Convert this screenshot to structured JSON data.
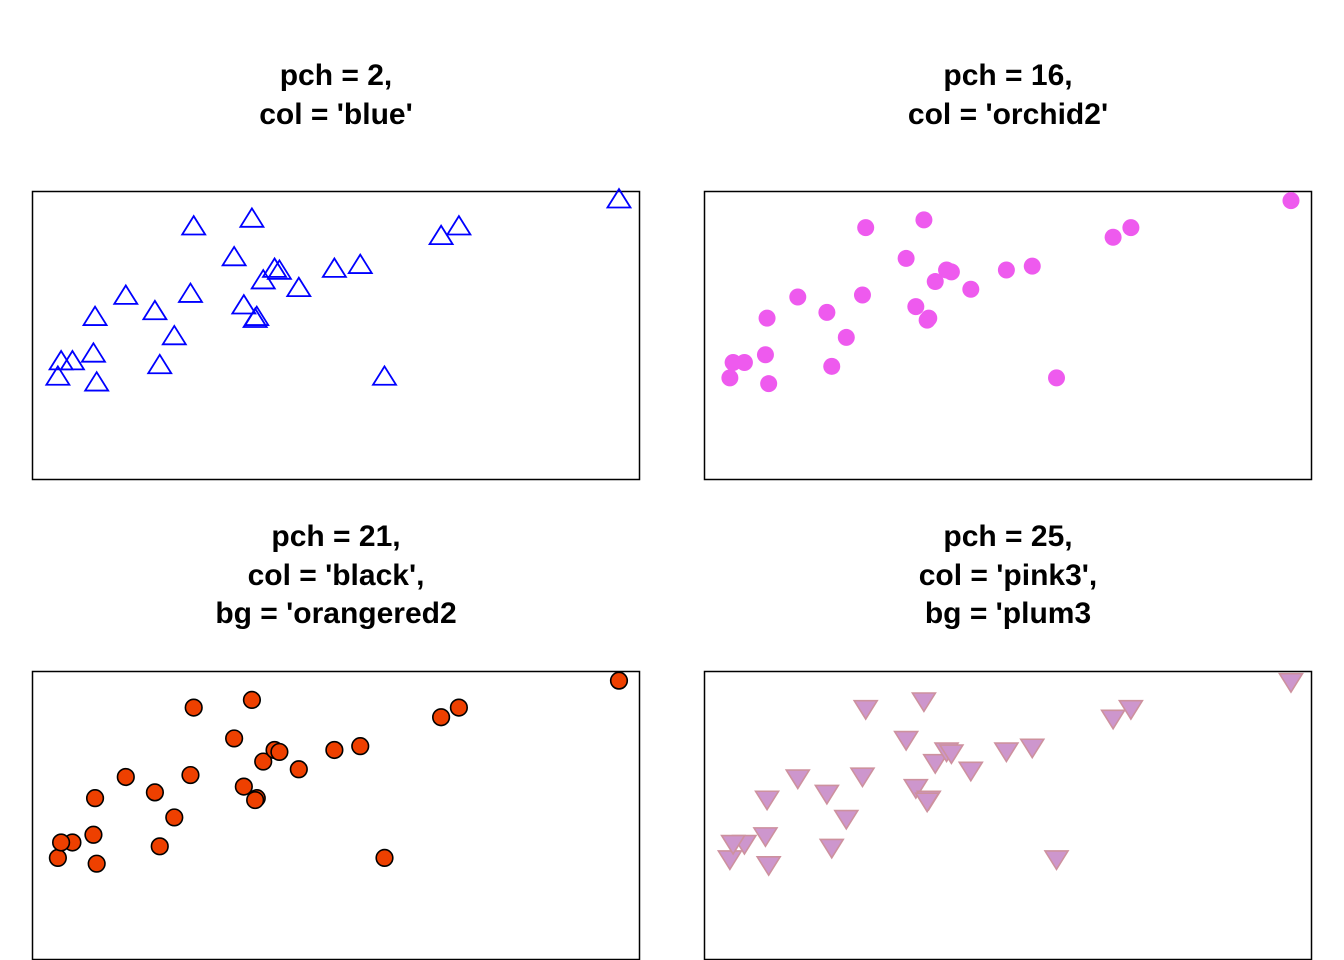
{
  "chart_data": [
    {
      "type": "scatter",
      "title_lines": [
        "pch = 2,",
        "col = 'blue'"
      ],
      "marker": "triangle-up-open",
      "stroke": "#0000ff",
      "fill": "none",
      "xlim": [
        0.62,
        4.38
      ],
      "ylim": [
        0.85,
        2.35
      ],
      "x": [
        4.25,
        3.26,
        3.15,
        2.49,
        1.98,
        1.87,
        1.62,
        1.6,
        2.65,
        1.93,
        2.05,
        2.12,
        1.2,
        2.15,
        2.27,
        2.01,
        2.0,
        1.38,
        1.0,
        1.02,
        1.41,
        0.87,
        0.78,
        1.5,
        1.01,
        2.8,
        0.8
      ],
      "y": [
        2.3,
        2.16,
        2.11,
        1.94,
        2.2,
        2.0,
        2.16,
        1.81,
        1.96,
        1.75,
        1.88,
        1.94,
        1.8,
        1.93,
        1.84,
        1.69,
        1.68,
        1.72,
        1.5,
        1.35,
        1.44,
        1.46,
        1.38,
        1.59,
        1.69,
        1.38,
        1.46
      ]
    },
    {
      "type": "scatter",
      "title_lines": [
        "pch = 16,",
        "col = 'orchid2'"
      ],
      "marker": "circle-filled",
      "stroke": "#ee5aee",
      "fill": "#ee5aee",
      "xlim": [
        0.62,
        4.38
      ],
      "ylim": [
        0.85,
        2.35
      ],
      "x": [
        4.25,
        3.26,
        3.15,
        2.49,
        1.98,
        1.87,
        1.62,
        1.6,
        2.65,
        1.93,
        2.05,
        2.12,
        1.2,
        2.15,
        2.27,
        2.01,
        2.0,
        1.38,
        1.0,
        1.02,
        1.41,
        0.87,
        0.78,
        1.5,
        1.01,
        2.8,
        0.8
      ],
      "y": [
        2.3,
        2.16,
        2.11,
        1.94,
        2.2,
        2.0,
        2.16,
        1.81,
        1.96,
        1.75,
        1.88,
        1.94,
        1.8,
        1.93,
        1.84,
        1.69,
        1.68,
        1.72,
        1.5,
        1.35,
        1.44,
        1.46,
        1.38,
        1.59,
        1.69,
        1.38,
        1.46
      ]
    },
    {
      "type": "scatter",
      "title_lines": [
        "pch = 21,",
        "col = 'black',",
        "bg = 'orangered2"
      ],
      "marker": "circle-bordered",
      "stroke": "#000000",
      "fill": "#ee4000",
      "xlim": [
        0.62,
        4.38
      ],
      "ylim": [
        0.85,
        2.35
      ],
      "x": [
        4.25,
        3.26,
        3.15,
        2.49,
        1.98,
        1.87,
        1.62,
        1.6,
        2.65,
        1.93,
        2.05,
        2.12,
        1.2,
        2.15,
        2.27,
        2.01,
        2.0,
        1.38,
        1.0,
        1.02,
        1.41,
        0.87,
        0.78,
        1.5,
        1.01,
        2.8,
        0.8
      ],
      "y": [
        2.3,
        2.16,
        2.11,
        1.94,
        2.2,
        2.0,
        2.16,
        1.81,
        1.96,
        1.75,
        1.88,
        1.94,
        1.8,
        1.93,
        1.84,
        1.69,
        1.68,
        1.72,
        1.5,
        1.35,
        1.44,
        1.46,
        1.38,
        1.59,
        1.69,
        1.38,
        1.46
      ]
    },
    {
      "type": "scatter",
      "title_lines": [
        "pch = 25,",
        "col = 'pink3',",
        "bg = 'plum3"
      ],
      "marker": "triangle-down-bordered",
      "stroke": "#cd919e",
      "fill": "#cd96cd",
      "xlim": [
        0.62,
        4.38
      ],
      "ylim": [
        0.85,
        2.35
      ],
      "x": [
        4.25,
        3.26,
        3.15,
        2.49,
        1.98,
        1.87,
        1.62,
        1.6,
        2.65,
        1.93,
        2.05,
        2.12,
        1.2,
        2.15,
        2.27,
        2.01,
        2.0,
        1.38,
        1.0,
        1.02,
        1.41,
        0.87,
        0.78,
        1.5,
        1.01,
        2.8,
        0.8
      ],
      "y": [
        2.3,
        2.16,
        2.11,
        1.94,
        2.2,
        2.0,
        2.16,
        1.81,
        1.96,
        1.75,
        1.88,
        1.94,
        1.8,
        1.93,
        1.84,
        1.69,
        1.68,
        1.72,
        1.5,
        1.35,
        1.44,
        1.46,
        1.38,
        1.59,
        1.69,
        1.38,
        1.46
      ]
    }
  ]
}
